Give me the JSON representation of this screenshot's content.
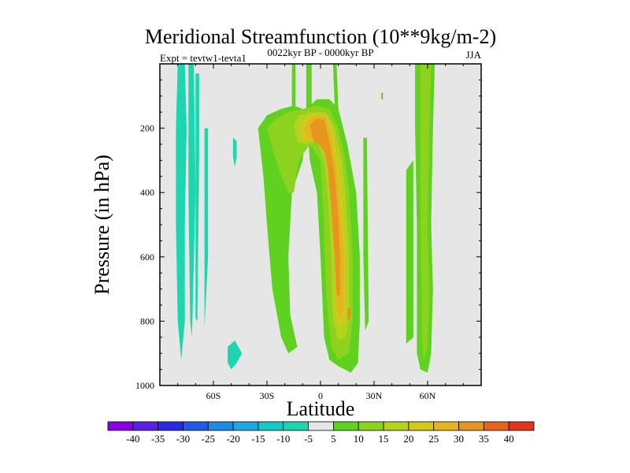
{
  "chart_data": {
    "type": "contour",
    "title": "Meridional Streamfunction (10**9kg/m-2)",
    "subtitle": "0022kyr BP - 0000kyr BP",
    "left_label": "Expt = tevtw1-tevta1",
    "right_label": "JJA",
    "xlabel": "Latitude",
    "ylabel": "Pressure (in hPa)",
    "xlim": [
      -90,
      90
    ],
    "ylim": [
      1000,
      0
    ],
    "x_ticks": [
      {
        "value": -60,
        "label": "60S"
      },
      {
        "value": -30,
        "label": "30S"
      },
      {
        "value": 0,
        "label": "0"
      },
      {
        "value": 30,
        "label": "30N"
      },
      {
        "value": 60,
        "label": "60N"
      }
    ],
    "y_ticks": [
      {
        "value": 200,
        "label": "200"
      },
      {
        "value": 400,
        "label": "400"
      },
      {
        "value": 600,
        "label": "600"
      },
      {
        "value": 800,
        "label": "800"
      },
      {
        "value": 1000,
        "label": "1000"
      }
    ],
    "background_color": "#e6e6e6",
    "colorbar": {
      "labels": [
        "-40",
        "-35",
        "-30",
        "-25",
        "-20",
        "-15",
        "-10",
        "-5",
        "5",
        "10",
        "15",
        "20",
        "25",
        "30",
        "35",
        "40"
      ],
      "colors": [
        "#8a00e6",
        "#5a1ee6",
        "#2a2ae6",
        "#1e5ae6",
        "#1e8ae6",
        "#1ea8e0",
        "#18c8c8",
        "#1cd6b0",
        "#e6e6e6",
        "#5ed21e",
        "#8cd21e",
        "#b4d21e",
        "#d2c81e",
        "#e6b41e",
        "#e6961e",
        "#e6641e",
        "#e6321e"
      ]
    },
    "regions": [
      {
        "name": "neg-5-band-80S",
        "level": -5,
        "color": "#1cd6b0",
        "points": [
          [
            -80,
            0
          ],
          [
            -76,
            0
          ],
          [
            -75,
            200
          ],
          [
            -76,
            500
          ],
          [
            -76,
            800
          ],
          [
            -78,
            920
          ],
          [
            -80,
            800
          ],
          [
            -81,
            500
          ],
          [
            -81,
            200
          ]
        ]
      },
      {
        "name": "neg-5-band-72S",
        "level": -5,
        "color": "#1cd6b0",
        "points": [
          [
            -74,
            0
          ],
          [
            -71,
            0
          ],
          [
            -70,
            400
          ],
          [
            -72,
            850
          ],
          [
            -73,
            800
          ],
          [
            -74,
            400
          ]
        ]
      },
      {
        "name": "neg-5-band-68S",
        "level": -5,
        "color": "#1cd6b0",
        "points": [
          [
            -70,
            30
          ],
          [
            -68,
            30
          ],
          [
            -68,
            300
          ],
          [
            -69,
            800
          ],
          [
            -70,
            790
          ]
        ]
      },
      {
        "name": "neg-5-band-64S",
        "level": -5,
        "color": "#1cd6b0",
        "points": [
          [
            -65,
            200
          ],
          [
            -63,
            200
          ],
          [
            -63,
            600
          ],
          [
            -65,
            820
          ]
        ]
      },
      {
        "name": "neg-5-patch-50S-upper",
        "level": -5,
        "color": "#1cd6b0",
        "points": [
          [
            -49,
            230
          ],
          [
            -47,
            240
          ],
          [
            -47,
            290
          ],
          [
            -48,
            320
          ],
          [
            -49,
            290
          ]
        ]
      },
      {
        "name": "neg-5-patch-50S-low",
        "level": -5,
        "color": "#1cd6b0",
        "points": [
          [
            -52,
            880
          ],
          [
            -48,
            860
          ],
          [
            -44,
            900
          ],
          [
            -47,
            930
          ],
          [
            -50,
            950
          ],
          [
            -52,
            930
          ]
        ]
      },
      {
        "name": "pos5-outer-left",
        "level": 5,
        "color": "#5ed21e",
        "points": [
          [
            -35,
            200
          ],
          [
            -30,
            160
          ],
          [
            -22,
            140
          ],
          [
            -15,
            130
          ],
          [
            -10,
            140
          ],
          [
            -8,
            200
          ],
          [
            -10,
            300
          ],
          [
            -16,
            400
          ],
          [
            -18,
            600
          ],
          [
            -17,
            780
          ],
          [
            -13,
            880
          ],
          [
            -18,
            900
          ],
          [
            -22,
            850
          ],
          [
            -27,
            700
          ],
          [
            -30,
            500
          ],
          [
            -32,
            350
          ]
        ]
      },
      {
        "name": "pos5-col-15S-top",
        "level": 5,
        "color": "#5ed21e",
        "points": [
          [
            -16,
            0
          ],
          [
            -14,
            0
          ],
          [
            -14,
            140
          ],
          [
            -16,
            140
          ]
        ]
      },
      {
        "name": "pos5-col-5S-top",
        "level": 5,
        "color": "#5ed21e",
        "points": [
          [
            -8,
            0
          ],
          [
            -5,
            0
          ],
          [
            -5,
            140
          ],
          [
            -8,
            140
          ]
        ]
      },
      {
        "name": "pos5-main-cell",
        "level": 5,
        "color": "#5ed21e",
        "points": [
          [
            -8,
            140
          ],
          [
            -2,
            110
          ],
          [
            5,
            110
          ],
          [
            10,
            140
          ],
          [
            15,
            250
          ],
          [
            20,
            400
          ],
          [
            22,
            600
          ],
          [
            22,
            800
          ],
          [
            21,
            930
          ],
          [
            17,
            960
          ],
          [
            10,
            940
          ],
          [
            5,
            920
          ],
          [
            2,
            850
          ],
          [
            0,
            600
          ],
          [
            -2,
            400
          ],
          [
            -6,
            300
          ]
        ]
      },
      {
        "name": "pos5-col-10N-top",
        "level": 5,
        "color": "#5ed21e",
        "points": [
          [
            7,
            0
          ],
          [
            9,
            0
          ],
          [
            10,
            140
          ],
          [
            8,
            140
          ]
        ]
      },
      {
        "name": "pos5-col-25N",
        "level": 5,
        "color": "#5ed21e",
        "points": [
          [
            24,
            230
          ],
          [
            26,
            230
          ],
          [
            27,
            800
          ],
          [
            25,
            830
          ],
          [
            24,
            600
          ]
        ]
      },
      {
        "name": "pos5-col-35N",
        "level": 5,
        "color": "#5ed21e",
        "points": [
          [
            34,
            90
          ],
          [
            35,
            90
          ],
          [
            35,
            110
          ],
          [
            34,
            110
          ]
        ]
      },
      {
        "name": "pos5-col-50N",
        "level": 5,
        "color": "#5ed21e",
        "points": [
          [
            48,
            330
          ],
          [
            52,
            300
          ],
          [
            52,
            850
          ],
          [
            48,
            870
          ]
        ]
      },
      {
        "name": "pos5-col-60N",
        "level": 5,
        "color": "#5ed21e",
        "points": [
          [
            53,
            0
          ],
          [
            64,
            0
          ],
          [
            63,
            200
          ],
          [
            62,
            500
          ],
          [
            63,
            700
          ],
          [
            62,
            900
          ],
          [
            60,
            960
          ],
          [
            56,
            950
          ],
          [
            54,
            900
          ],
          [
            54,
            500
          ],
          [
            53,
            200
          ]
        ]
      },
      {
        "name": "pos10-upper",
        "level": 10,
        "color": "#8cd21e",
        "points": [
          [
            -30,
            200
          ],
          [
            -25,
            170
          ],
          [
            -18,
            150
          ],
          [
            -10,
            140
          ],
          [
            -2,
            130
          ],
          [
            5,
            140
          ],
          [
            10,
            200
          ],
          [
            14,
            300
          ],
          [
            16,
            400
          ],
          [
            18,
            600
          ],
          [
            18,
            800
          ],
          [
            16,
            900
          ],
          [
            10,
            920
          ],
          [
            6,
            880
          ],
          [
            3,
            700
          ],
          [
            2,
            500
          ],
          [
            0,
            300
          ],
          [
            -6,
            250
          ],
          [
            -12,
            300
          ],
          [
            -15,
            400
          ],
          [
            -18,
            400
          ],
          [
            -22,
            350
          ],
          [
            -26,
            280
          ]
        ]
      },
      {
        "name": "pos10-60N",
        "level": 10,
        "color": "#8cd21e",
        "points": [
          [
            56,
            0
          ],
          [
            62,
            0
          ],
          [
            61,
            200
          ],
          [
            60,
            500
          ],
          [
            61,
            700
          ],
          [
            60,
            880
          ],
          [
            58,
            920
          ],
          [
            57,
            880
          ],
          [
            56,
            500
          ]
        ]
      },
      {
        "name": "pos15",
        "level": 15,
        "color": "#b4d21e",
        "points": [
          [
            -15,
            190
          ],
          [
            -12,
            160
          ],
          [
            -5,
            150
          ],
          [
            3,
            150
          ],
          [
            8,
            200
          ],
          [
            12,
            300
          ],
          [
            14,
            400
          ],
          [
            16,
            600
          ],
          [
            16,
            800
          ],
          [
            14,
            850
          ],
          [
            10,
            860
          ],
          [
            7,
            800
          ],
          [
            6,
            600
          ],
          [
            4,
            400
          ],
          [
            2,
            300
          ],
          [
            -2,
            240
          ],
          [
            -8,
            250
          ],
          [
            -13,
            240
          ]
        ]
      },
      {
        "name": "pos20",
        "level": 20,
        "color": "#d2c81e",
        "points": [
          [
            -12,
            200
          ],
          [
            -8,
            165
          ],
          [
            -2,
            155
          ],
          [
            4,
            160
          ],
          [
            7,
            210
          ],
          [
            10,
            300
          ],
          [
            12,
            400
          ],
          [
            14,
            600
          ],
          [
            14,
            780
          ],
          [
            12,
            820
          ],
          [
            9,
            800
          ],
          [
            8,
            600
          ],
          [
            6,
            400
          ],
          [
            4,
            280
          ],
          [
            0,
            230
          ],
          [
            -5,
            240
          ],
          [
            -10,
            240
          ]
        ]
      },
      {
        "name": "pos25",
        "level": 25,
        "color": "#e6b41e",
        "points": [
          [
            -9,
            200
          ],
          [
            -6,
            170
          ],
          [
            -1,
            160
          ],
          [
            3,
            170
          ],
          [
            6,
            230
          ],
          [
            9,
            330
          ],
          [
            11,
            450
          ],
          [
            13,
            600
          ],
          [
            13,
            760
          ],
          [
            11,
            790
          ],
          [
            9,
            760
          ],
          [
            8,
            600
          ],
          [
            6,
            420
          ],
          [
            4,
            300
          ],
          [
            1,
            250
          ],
          [
            -3,
            240
          ],
          [
            -7,
            230
          ]
        ]
      },
      {
        "name": "pos30",
        "level": 30,
        "color": "#e6961e",
        "points": [
          [
            -6,
            190
          ],
          [
            -2,
            170
          ],
          [
            2,
            175
          ],
          [
            5,
            240
          ],
          [
            8,
            350
          ],
          [
            10,
            480
          ],
          [
            11,
            600
          ],
          [
            11,
            720
          ],
          [
            9,
            720
          ],
          [
            8,
            600
          ],
          [
            6,
            450
          ],
          [
            4,
            320
          ],
          [
            2,
            270
          ],
          [
            -1,
            250
          ],
          [
            -4,
            240
          ]
        ]
      },
      {
        "name": "pos30-core-top",
        "level": 30,
        "color": "#e6961e",
        "points": [
          [
            -2,
            180
          ],
          [
            1,
            175
          ],
          [
            2,
            200
          ],
          [
            2,
            240
          ],
          [
            0,
            250
          ],
          [
            -2,
            220
          ]
        ]
      },
      {
        "name": "pos30-core-low",
        "level": 30,
        "color": "#e6961e",
        "points": [
          [
            15,
            760
          ],
          [
            17,
            760
          ],
          [
            17,
            790
          ],
          [
            15,
            800
          ]
        ]
      }
    ]
  }
}
